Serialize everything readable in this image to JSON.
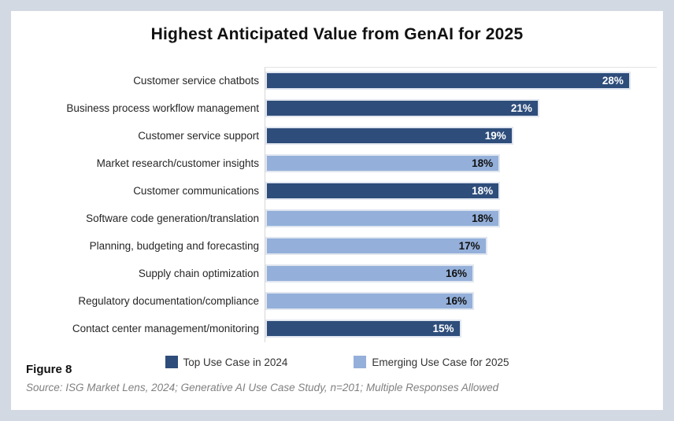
{
  "title": "Highest Anticipated Value from GenAI for 2025",
  "figure_label": "Figure 8",
  "source_note": "Source: ISG Market Lens, 2024; Generative AI Use Case Study, n=201; Multiple Responses Allowed",
  "colors": {
    "page_background": "#D3D9E3",
    "card_background": "#FFFFFF",
    "top_2024_bar": "#2E4D7B",
    "emerging_2025_bar": "#94B0DA",
    "axis_line": "#D6D6D6"
  },
  "legend": [
    {
      "label": "Top Use Case in 2024",
      "series": "top-2024",
      "color": "#2E4D7B"
    },
    {
      "label": "Emerging Use Case for 2025",
      "series": "emerging-2025",
      "color": "#94B0DA"
    }
  ],
  "chart_data": {
    "type": "bar",
    "orientation": "horizontal",
    "title": "Highest Anticipated Value from GenAI for 2025",
    "unit": "%",
    "xlim": [
      0,
      30
    ],
    "grid": false,
    "legend_position": "bottom",
    "categories": [
      "Customer service chatbots",
      "Business process workflow management",
      "Customer service support",
      "Market research/customer insights",
      "Customer communications",
      "Software code generation/translation",
      "Planning, budgeting and forecasting",
      "Supply chain optimization",
      "Regulatory documentation/compliance",
      "Contact center management/monitoring"
    ],
    "values": [
      28,
      21,
      19,
      18,
      18,
      18,
      17,
      16,
      16,
      15
    ],
    "rows": [
      {
        "label": "Customer service chatbots",
        "value": 28,
        "display": "28%",
        "series": "top-2024"
      },
      {
        "label": "Business process workflow management",
        "value": 21,
        "display": "21%",
        "series": "top-2024"
      },
      {
        "label": "Customer service support",
        "value": 19,
        "display": "19%",
        "series": "top-2024"
      },
      {
        "label": "Market research/customer insights",
        "value": 18,
        "display": "18%",
        "series": "emerging-2025"
      },
      {
        "label": "Customer communications",
        "value": 18,
        "display": "18%",
        "series": "top-2024"
      },
      {
        "label": "Software code generation/translation",
        "value": 18,
        "display": "18%",
        "series": "emerging-2025"
      },
      {
        "label": "Planning, budgeting and forecasting",
        "value": 17,
        "display": "17%",
        "series": "emerging-2025"
      },
      {
        "label": "Supply chain optimization",
        "value": 16,
        "display": "16%",
        "series": "emerging-2025"
      },
      {
        "label": "Regulatory documentation/compliance",
        "value": 16,
        "display": "16%",
        "series": "emerging-2025"
      },
      {
        "label": "Contact center management/monitoring",
        "value": 15,
        "display": "15%",
        "series": "top-2024"
      }
    ]
  }
}
